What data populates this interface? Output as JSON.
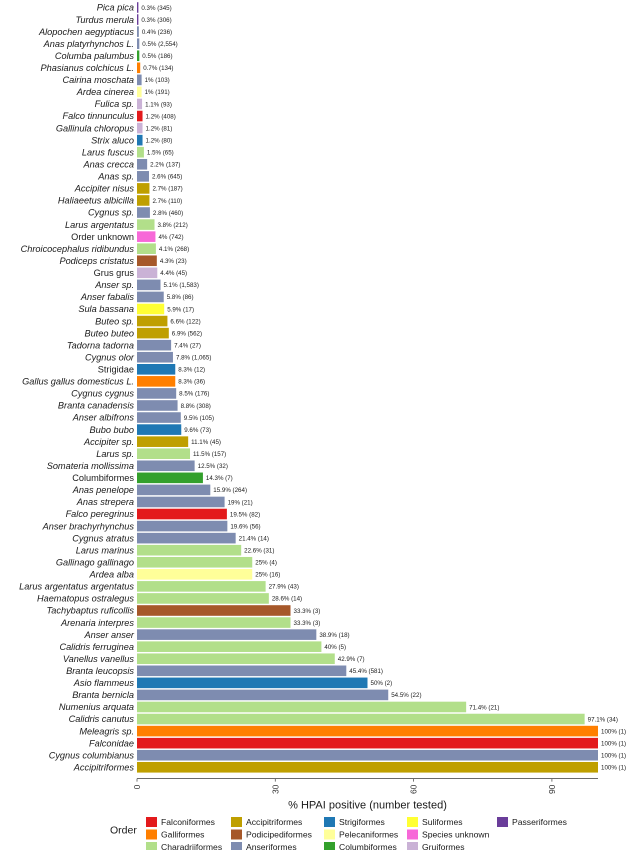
{
  "chart_data": {
    "type": "bar",
    "orientation": "horizontal",
    "xlabel": "% HPAI positive (number tested)",
    "xlim": [
      0,
      100
    ],
    "xticks": [
      "0",
      "30",
      "60",
      "90"
    ],
    "xtick_values": [
      0,
      30,
      60,
      90
    ],
    "grid": false,
    "legend_position": "bottom",
    "legend": {
      "title": "Order",
      "items": [
        {
          "name": "Falconiformes",
          "color": "#E31A1C"
        },
        {
          "name": "Galliformes",
          "color": "#FF7F00"
        },
        {
          "name": "Charadriiformes",
          "color": "#B2DF8A"
        },
        {
          "name": "Accipitriformes",
          "color": "#BF9F00"
        },
        {
          "name": "Podicipediformes",
          "color": "#A6582A"
        },
        {
          "name": "Anseriformes",
          "color": "#7E8CB0"
        },
        {
          "name": "Strigiformes",
          "color": "#1F78B4"
        },
        {
          "name": "Pelecaniformes",
          "color": "#FFFF99"
        },
        {
          "name": "Columbiformes",
          "color": "#33A02C"
        },
        {
          "name": "Suliformes",
          "color": "#FFFF33"
        },
        {
          "name": "Species unknown",
          "color": "#F768D8"
        },
        {
          "name": "Gruiformes",
          "color": "#CAB2D6"
        },
        {
          "name": "Passeriformes",
          "color": "#6A3D9A"
        }
      ]
    },
    "bars": [
      {
        "category": "Pica pica",
        "italic": true,
        "value": 0.3,
        "label": "0.3% (345)",
        "order": "Passeriformes"
      },
      {
        "category": "Turdus merula",
        "italic": true,
        "value": 0.3,
        "label": "0.3% (306)",
        "order": "Passeriformes"
      },
      {
        "category": "Alopochen aegyptiacus",
        "italic": true,
        "value": 0.4,
        "label": "0.4% (236)",
        "order": "Anseriformes"
      },
      {
        "category": "Anas platyrhynchos L.",
        "italic": true,
        "value": 0.5,
        "label": "0.5% (2,554)",
        "order": "Anseriformes"
      },
      {
        "category": "Columba palumbus",
        "italic": true,
        "value": 0.5,
        "label": "0.5% (186)",
        "order": "Columbiformes"
      },
      {
        "category": "Phasianus colchicus L.",
        "italic": true,
        "value": 0.7,
        "label": "0.7% (134)",
        "order": "Galliformes"
      },
      {
        "category": "Cairina moschata",
        "italic": true,
        "value": 1,
        "label": "1% (103)",
        "order": "Anseriformes"
      },
      {
        "category": "Ardea cinerea",
        "italic": true,
        "value": 1,
        "label": "1% (191)",
        "order": "Pelecaniformes"
      },
      {
        "category": "Fulica sp.",
        "italic": true,
        "value": 1.1,
        "label": "1.1% (93)",
        "order": "Gruiformes"
      },
      {
        "category": "Falco tinnunculus",
        "italic": true,
        "value": 1.2,
        "label": "1.2% (408)",
        "order": "Falconiformes"
      },
      {
        "category": "Gallinula chloropus",
        "italic": true,
        "value": 1.2,
        "label": "1.2% (81)",
        "order": "Gruiformes"
      },
      {
        "category": "Strix aluco",
        "italic": true,
        "value": 1.2,
        "label": "1.2% (80)",
        "order": "Strigiformes"
      },
      {
        "category": "Larus fuscus",
        "italic": true,
        "value": 1.5,
        "label": "1.5% (65)",
        "order": "Charadriiformes"
      },
      {
        "category": "Anas crecca",
        "italic": true,
        "value": 2.2,
        "label": "2.2% (137)",
        "order": "Anseriformes"
      },
      {
        "category": "Anas sp.",
        "italic": true,
        "value": 2.6,
        "label": "2.6% (645)",
        "order": "Anseriformes"
      },
      {
        "category": "Accipiter nisus",
        "italic": true,
        "value": 2.7,
        "label": "2.7% (187)",
        "order": "Accipitriformes"
      },
      {
        "category": "Haliaeetus albicilla",
        "italic": true,
        "value": 2.7,
        "label": "2.7% (110)",
        "order": "Accipitriformes"
      },
      {
        "category": "Cygnus sp.",
        "italic": true,
        "value": 2.8,
        "label": "2.8% (460)",
        "order": "Anseriformes"
      },
      {
        "category": "Larus argentatus",
        "italic": true,
        "value": 3.8,
        "label": "3.8% (212)",
        "order": "Charadriiformes"
      },
      {
        "category": "Order unknown",
        "italic": false,
        "value": 4,
        "label": "4% (742)",
        "order": "Species unknown"
      },
      {
        "category": "Chroicocephalus ridibundus",
        "italic": true,
        "value": 4.1,
        "label": "4.1% (268)",
        "order": "Charadriiformes"
      },
      {
        "category": "Podiceps cristatus",
        "italic": true,
        "value": 4.3,
        "label": "4.3% (23)",
        "order": "Podicipediformes"
      },
      {
        "category": "Grus grus",
        "italic": false,
        "value": 4.4,
        "label": "4.4% (45)",
        "order": "Gruiformes"
      },
      {
        "category": "Anser sp.",
        "italic": true,
        "value": 5.1,
        "label": "5.1% (1,583)",
        "order": "Anseriformes"
      },
      {
        "category": "Anser fabalis",
        "italic": true,
        "value": 5.8,
        "label": "5.8% (86)",
        "order": "Anseriformes"
      },
      {
        "category": "Sula bassana",
        "italic": true,
        "value": 5.9,
        "label": "5.9% (17)",
        "order": "Suliformes"
      },
      {
        "category": "Buteo sp.",
        "italic": true,
        "value": 6.6,
        "label": "6.6% (122)",
        "order": "Accipitriformes"
      },
      {
        "category": "Buteo buteo",
        "italic": true,
        "value": 6.9,
        "label": "6.9% (562)",
        "order": "Accipitriformes"
      },
      {
        "category": "Tadorna tadorna",
        "italic": true,
        "value": 7.4,
        "label": "7.4% (27)",
        "order": "Anseriformes"
      },
      {
        "category": "Cygnus olor",
        "italic": true,
        "value": 7.8,
        "label": "7.8% (1,065)",
        "order": "Anseriformes"
      },
      {
        "category": "Strigidae",
        "italic": false,
        "value": 8.3,
        "label": "8.3% (12)",
        "order": "Strigiformes"
      },
      {
        "category": "Gallus gallus domesticus L.",
        "italic": true,
        "value": 8.3,
        "label": "8.3% (36)",
        "order": "Galliformes"
      },
      {
        "category": "Cygnus cygnus",
        "italic": true,
        "value": 8.5,
        "label": "8.5% (176)",
        "order": "Anseriformes"
      },
      {
        "category": "Branta canadensis",
        "italic": true,
        "value": 8.8,
        "label": "8.8% (308)",
        "order": "Anseriformes"
      },
      {
        "category": "Anser albifrons",
        "italic": true,
        "value": 9.5,
        "label": "9.5% (105)",
        "order": "Anseriformes"
      },
      {
        "category": "Bubo bubo",
        "italic": true,
        "value": 9.6,
        "label": "9.6% (73)",
        "order": "Strigiformes"
      },
      {
        "category": "Accipiter sp.",
        "italic": true,
        "value": 11.1,
        "label": "11.1% (45)",
        "order": "Accipitriformes"
      },
      {
        "category": "Larus sp.",
        "italic": true,
        "value": 11.5,
        "label": "11.5% (157)",
        "order": "Charadriiformes"
      },
      {
        "category": "Somateria mollissima",
        "italic": true,
        "value": 12.5,
        "label": "12.5% (32)",
        "order": "Anseriformes"
      },
      {
        "category": "Columbiformes",
        "italic": false,
        "value": 14.3,
        "label": "14.3% (7)",
        "order": "Columbiformes"
      },
      {
        "category": "Anas penelope",
        "italic": true,
        "value": 15.9,
        "label": "15.9% (264)",
        "order": "Anseriformes"
      },
      {
        "category": "Anas strepera",
        "italic": true,
        "value": 19,
        "label": "19% (21)",
        "order": "Anseriformes"
      },
      {
        "category": "Falco peregrinus",
        "italic": true,
        "value": 19.5,
        "label": "19.5% (82)",
        "order": "Falconiformes"
      },
      {
        "category": "Anser brachyrhynchus",
        "italic": true,
        "value": 19.6,
        "label": "19.6% (56)",
        "order": "Anseriformes"
      },
      {
        "category": "Cygnus atratus",
        "italic": true,
        "value": 21.4,
        "label": "21.4% (14)",
        "order": "Anseriformes"
      },
      {
        "category": "Larus marinus",
        "italic": true,
        "value": 22.6,
        "label": "22.6% (31)",
        "order": "Charadriiformes"
      },
      {
        "category": "Gallinago gallinago",
        "italic": true,
        "value": 25,
        "label": "25% (4)",
        "order": "Charadriiformes"
      },
      {
        "category": "Ardea alba",
        "italic": true,
        "value": 25,
        "label": "25% (16)",
        "order": "Pelecaniformes"
      },
      {
        "category": "Larus argentatus argentatus",
        "italic": true,
        "value": 27.9,
        "label": "27.9% (43)",
        "order": "Charadriiformes"
      },
      {
        "category": "Haematopus ostralegus",
        "italic": true,
        "value": 28.6,
        "label": "28.6% (14)",
        "order": "Charadriiformes"
      },
      {
        "category": "Tachybaptus ruficollis",
        "italic": true,
        "value": 33.3,
        "label": "33.3% (3)",
        "order": "Podicipediformes"
      },
      {
        "category": "Arenaria interpres",
        "italic": true,
        "value": 33.3,
        "label": "33.3% (3)",
        "order": "Charadriiformes"
      },
      {
        "category": "Anser anser",
        "italic": true,
        "value": 38.9,
        "label": "38.9% (18)",
        "order": "Anseriformes"
      },
      {
        "category": "Calidris ferruginea",
        "italic": true,
        "value": 40,
        "label": "40% (5)",
        "order": "Charadriiformes"
      },
      {
        "category": "Vanellus vanellus",
        "italic": true,
        "value": 42.9,
        "label": "42.9% (7)",
        "order": "Charadriiformes"
      },
      {
        "category": "Branta leucopsis",
        "italic": true,
        "value": 45.4,
        "label": "45.4% (581)",
        "order": "Anseriformes"
      },
      {
        "category": "Asio flammeus",
        "italic": true,
        "value": 50,
        "label": "50% (2)",
        "order": "Strigiformes"
      },
      {
        "category": "Branta bernicla",
        "italic": true,
        "value": 54.5,
        "label": "54.5% (22)",
        "order": "Anseriformes"
      },
      {
        "category": "Numenius arquata",
        "italic": true,
        "value": 71.4,
        "label": "71.4% (21)",
        "order": "Charadriiformes"
      },
      {
        "category": "Calidris canutus",
        "italic": true,
        "value": 97.1,
        "label": "97.1% (34)",
        "order": "Charadriiformes"
      },
      {
        "category": "Meleagris sp.",
        "italic": true,
        "value": 100,
        "label": "100% (1)",
        "order": "Galliformes"
      },
      {
        "category": "Falconidae",
        "italic": true,
        "value": 100,
        "label": "100% (1)",
        "order": "Falconiformes"
      },
      {
        "category": "Cygnus columbianus",
        "italic": true,
        "value": 100,
        "label": "100% (1)",
        "order": "Anseriformes"
      },
      {
        "category": "Accipitriformes",
        "italic": true,
        "value": 100,
        "label": "100% (1)",
        "order": "Accipitriformes"
      }
    ]
  }
}
